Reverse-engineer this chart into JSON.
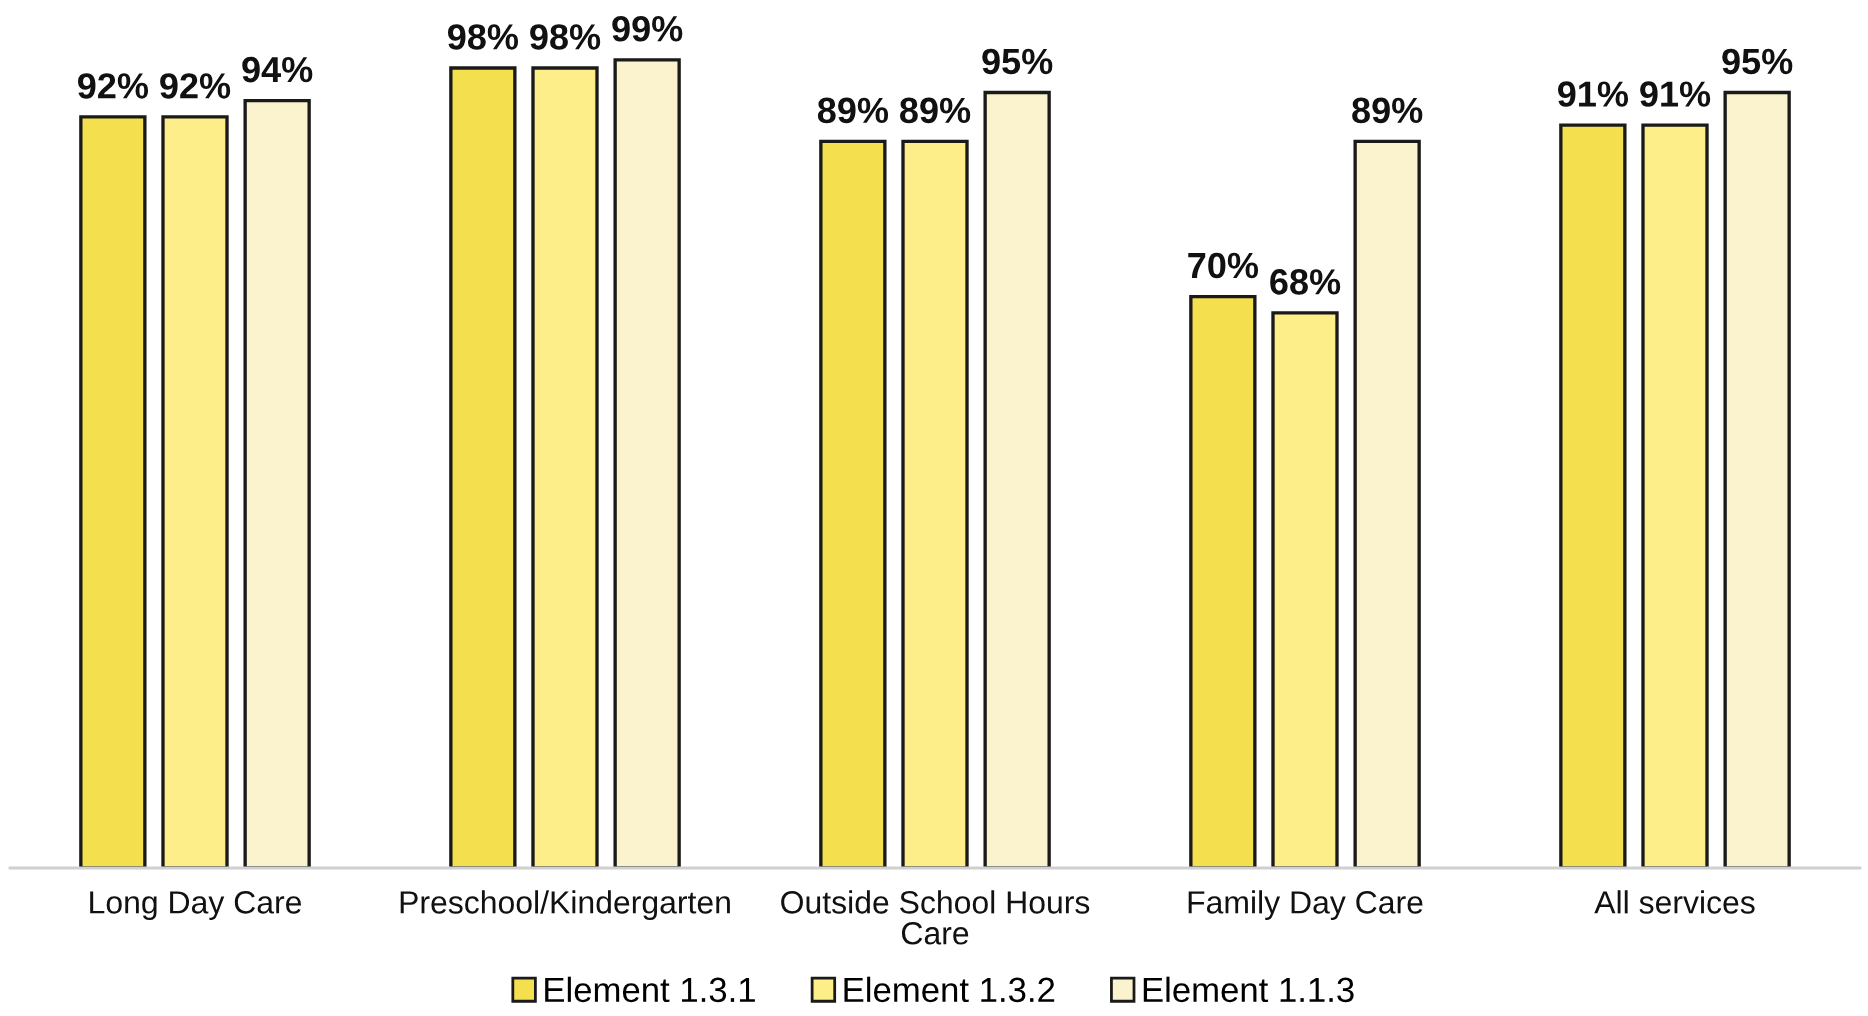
{
  "chart_data": {
    "type": "bar",
    "categories": [
      "Long Day Care",
      "Preschool/Kindergarten",
      "Outside School Hours Care",
      "Family Day Care",
      "All services"
    ],
    "series": [
      {
        "name": "Element 1.3.1",
        "color": "#f4df4f",
        "values": [
          92,
          98,
          89,
          70,
          91
        ],
        "value_labels": [
          "92%",
          "98%",
          "89%",
          "70%",
          "91%"
        ]
      },
      {
        "name": "Element 1.3.2",
        "color": "#fdee8a",
        "values": [
          92,
          98,
          89,
          68,
          91
        ],
        "value_labels": [
          "92%",
          "98%",
          "89%",
          "68%",
          "91%"
        ]
      },
      {
        "name": "Element 1.1.3",
        "color": "#fbf3cd",
        "values": [
          94,
          99,
          95,
          89,
          95
        ],
        "value_labels": [
          "94%",
          "99%",
          "95%",
          "89%",
          "95%"
        ]
      }
    ],
    "legend": "bottom"
  }
}
